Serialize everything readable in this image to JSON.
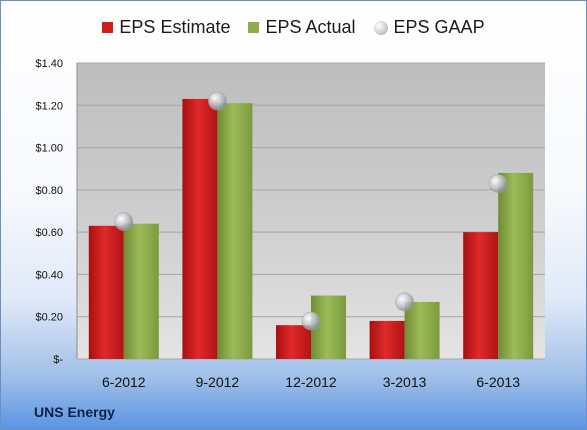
{
  "legend": [
    {
      "label": "EPS Estimate",
      "color": "#cc1f1f",
      "marker": "square"
    },
    {
      "label": "EPS Actual",
      "color": "#8fac4a",
      "marker": "square"
    },
    {
      "label": "EPS GAAP",
      "color": "#b8bcc2",
      "marker": "circle"
    }
  ],
  "footer": {
    "company": "UNS Energy"
  },
  "chart_data": {
    "type": "bar",
    "categories": [
      "6-2012",
      "9-2012",
      "12-2012",
      "3-2013",
      "6-2013"
    ],
    "series": [
      {
        "name": "EPS Estimate",
        "type": "bar",
        "color": "#cc1f1f",
        "values": [
          0.63,
          1.23,
          0.16,
          0.18,
          0.6
        ]
      },
      {
        "name": "EPS Actual",
        "type": "bar",
        "color": "#8fac4a",
        "values": [
          0.64,
          1.21,
          0.3,
          0.27,
          0.88
        ]
      },
      {
        "name": "EPS GAAP",
        "type": "scatter",
        "color": "#b8bcc2",
        "values": [
          0.65,
          1.22,
          0.18,
          0.27,
          0.83
        ]
      }
    ],
    "ytick_labels": [
      "$-",
      "$0.20",
      "$0.40",
      "$0.60",
      "$0.80",
      "$1.00",
      "$1.20",
      "$1.40"
    ],
    "ytick_values": [
      0,
      0.2,
      0.4,
      0.6,
      0.8,
      1.0,
      1.2,
      1.4
    ],
    "ylim": [
      0,
      1.4
    ],
    "grid": true,
    "legend_position": "top"
  }
}
